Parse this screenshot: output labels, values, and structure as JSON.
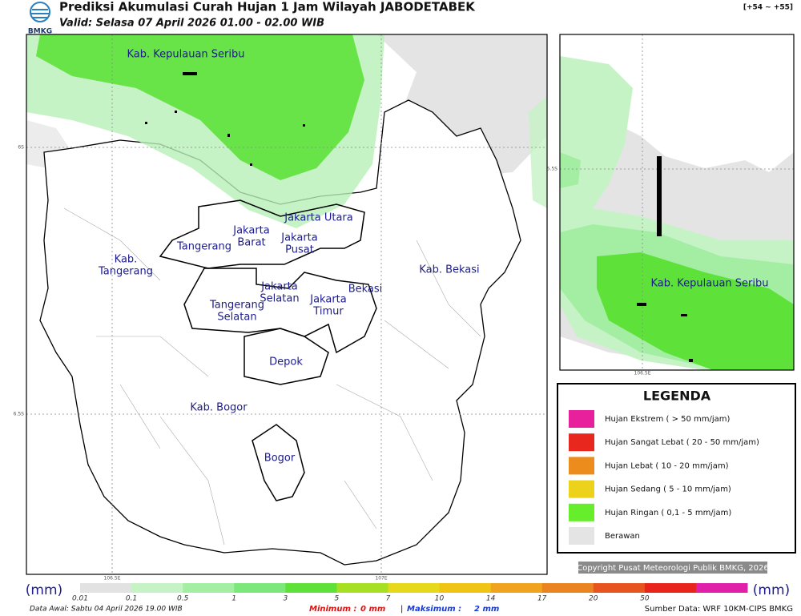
{
  "header": {
    "logo_text": "BMKG",
    "title": "Prediksi Akumulasi Curah Hujan 1 Jam Wilayah JABODETABEK",
    "valid": "Valid: Selasa 07 April 2026 01.00 - 02.00 WIB",
    "run_offset": "[+54 ~ +55]"
  },
  "main_map": {
    "lat_labels": [
      "6S",
      "6.5S"
    ],
    "lon_labels": [
      "106.5E",
      "107E"
    ],
    "regions": [
      [
        "Kab. Kepulauan Seribu"
      ],
      [
        "Jakarta Utara"
      ],
      [
        "Jakarta",
        "Barat"
      ],
      [
        "Jakarta",
        "Pusat"
      ],
      [
        "Tangerang"
      ],
      [
        "Kab.",
        "Tangerang"
      ],
      [
        "Kab. Bekasi"
      ],
      [
        "Jakarta",
        "Selatan"
      ],
      [
        "Bekasi"
      ],
      [
        "Jakarta",
        "Timur"
      ],
      [
        "Tangerang",
        "Selatan"
      ],
      [
        "Depok"
      ],
      [
        "Kab. Bogor"
      ],
      [
        "Bogor"
      ]
    ]
  },
  "inset_map": {
    "lat_label": "5.5S",
    "lon_label": "106.5E",
    "region": "Kab. Kepulauan Seribu"
  },
  "legend": {
    "title": "LEGENDA",
    "items": [
      {
        "label": "Hujan Ekstrem ( > 50 mm/jam)",
        "color": "#e8209c"
      },
      {
        "label": "Hujan Sangat Lebat ( 20 - 50 mm/jam)",
        "color": "#e8281e"
      },
      {
        "label": "Hujan Lebat ( 10 - 20 mm/jam)",
        "color": "#ec8c1c"
      },
      {
        "label": "Hujan Sedang ( 5 - 10 mm/jam)",
        "color": "#ecd21a"
      },
      {
        "label": "Hujan Ringan ( 0,1 - 5 mm/jam)",
        "color": "#66ee2c"
      },
      {
        "label": "Berawan",
        "color": "#e4e4e4"
      }
    ]
  },
  "copyright": "Copyright Pusat Meteorologi Publik BMKG, 2026",
  "colorbar": {
    "unit": "(mm)",
    "ticks": [
      "0.01",
      "0.1",
      "0.5",
      "1",
      "3",
      "5",
      "7",
      "10",
      "14",
      "17",
      "20",
      "50"
    ],
    "colors": [
      "#e2e2e2",
      "#c6f3c6",
      "#a4eea4",
      "#7ce87c",
      "#5ee23a",
      "#a6e022",
      "#e6d81a",
      "#f0c414",
      "#f0a41e",
      "#ea8420",
      "#e85420",
      "#e8241c",
      "#e020a8"
    ]
  },
  "footer": {
    "start": "Data Awal: Sabtu 04 April 2026 19.00 WIB",
    "min_label": "Minimum :",
    "min_value": "0 mm",
    "separator": "|",
    "max_label": "Maksimum :",
    "max_value": "2 mm",
    "source": "Sumber Data: WRF 10KM-CIPS BMKG"
  }
}
